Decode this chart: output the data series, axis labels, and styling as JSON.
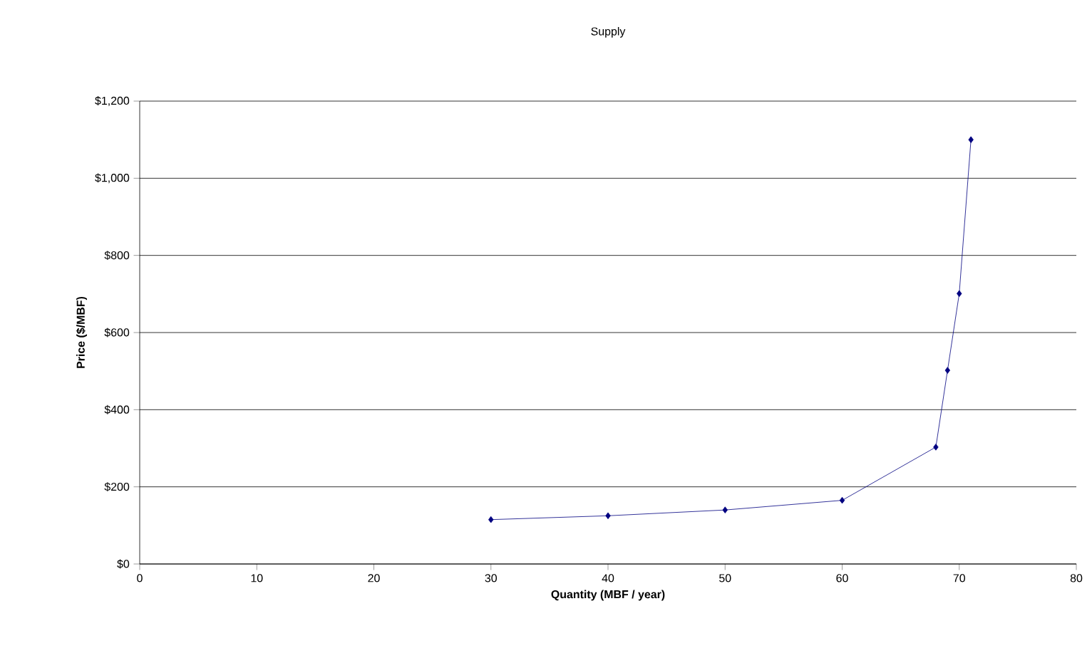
{
  "chart_data": {
    "type": "line",
    "title": "Supply",
    "xlabel": "Quantity (MBF / year)",
    "ylabel": "Price ($/MBF)",
    "x": [
      30,
      40,
      50,
      60,
      68,
      69,
      70,
      71
    ],
    "series": [
      {
        "color": "#000080",
        "values": [
          115,
          125,
          140,
          165,
          303,
          502,
          701,
          1100
        ]
      }
    ],
    "xlim": [
      0,
      80
    ],
    "xticks": [
      0,
      10,
      20,
      30,
      40,
      50,
      60,
      70,
      80
    ],
    "ylim": [
      0,
      1200
    ],
    "yticks": [
      {
        "value": 0,
        "label": "$0"
      },
      {
        "value": 200,
        "label": "$200"
      },
      {
        "value": 400,
        "label": "$400"
      },
      {
        "value": 600,
        "label": "$600"
      },
      {
        "value": 800,
        "label": "$800"
      },
      {
        "value": 1000,
        "label": "$1,000"
      },
      {
        "value": 1200,
        "label": "$1,200"
      }
    ],
    "grid": "y",
    "marker": "diamond",
    "line_style": "solid"
  }
}
